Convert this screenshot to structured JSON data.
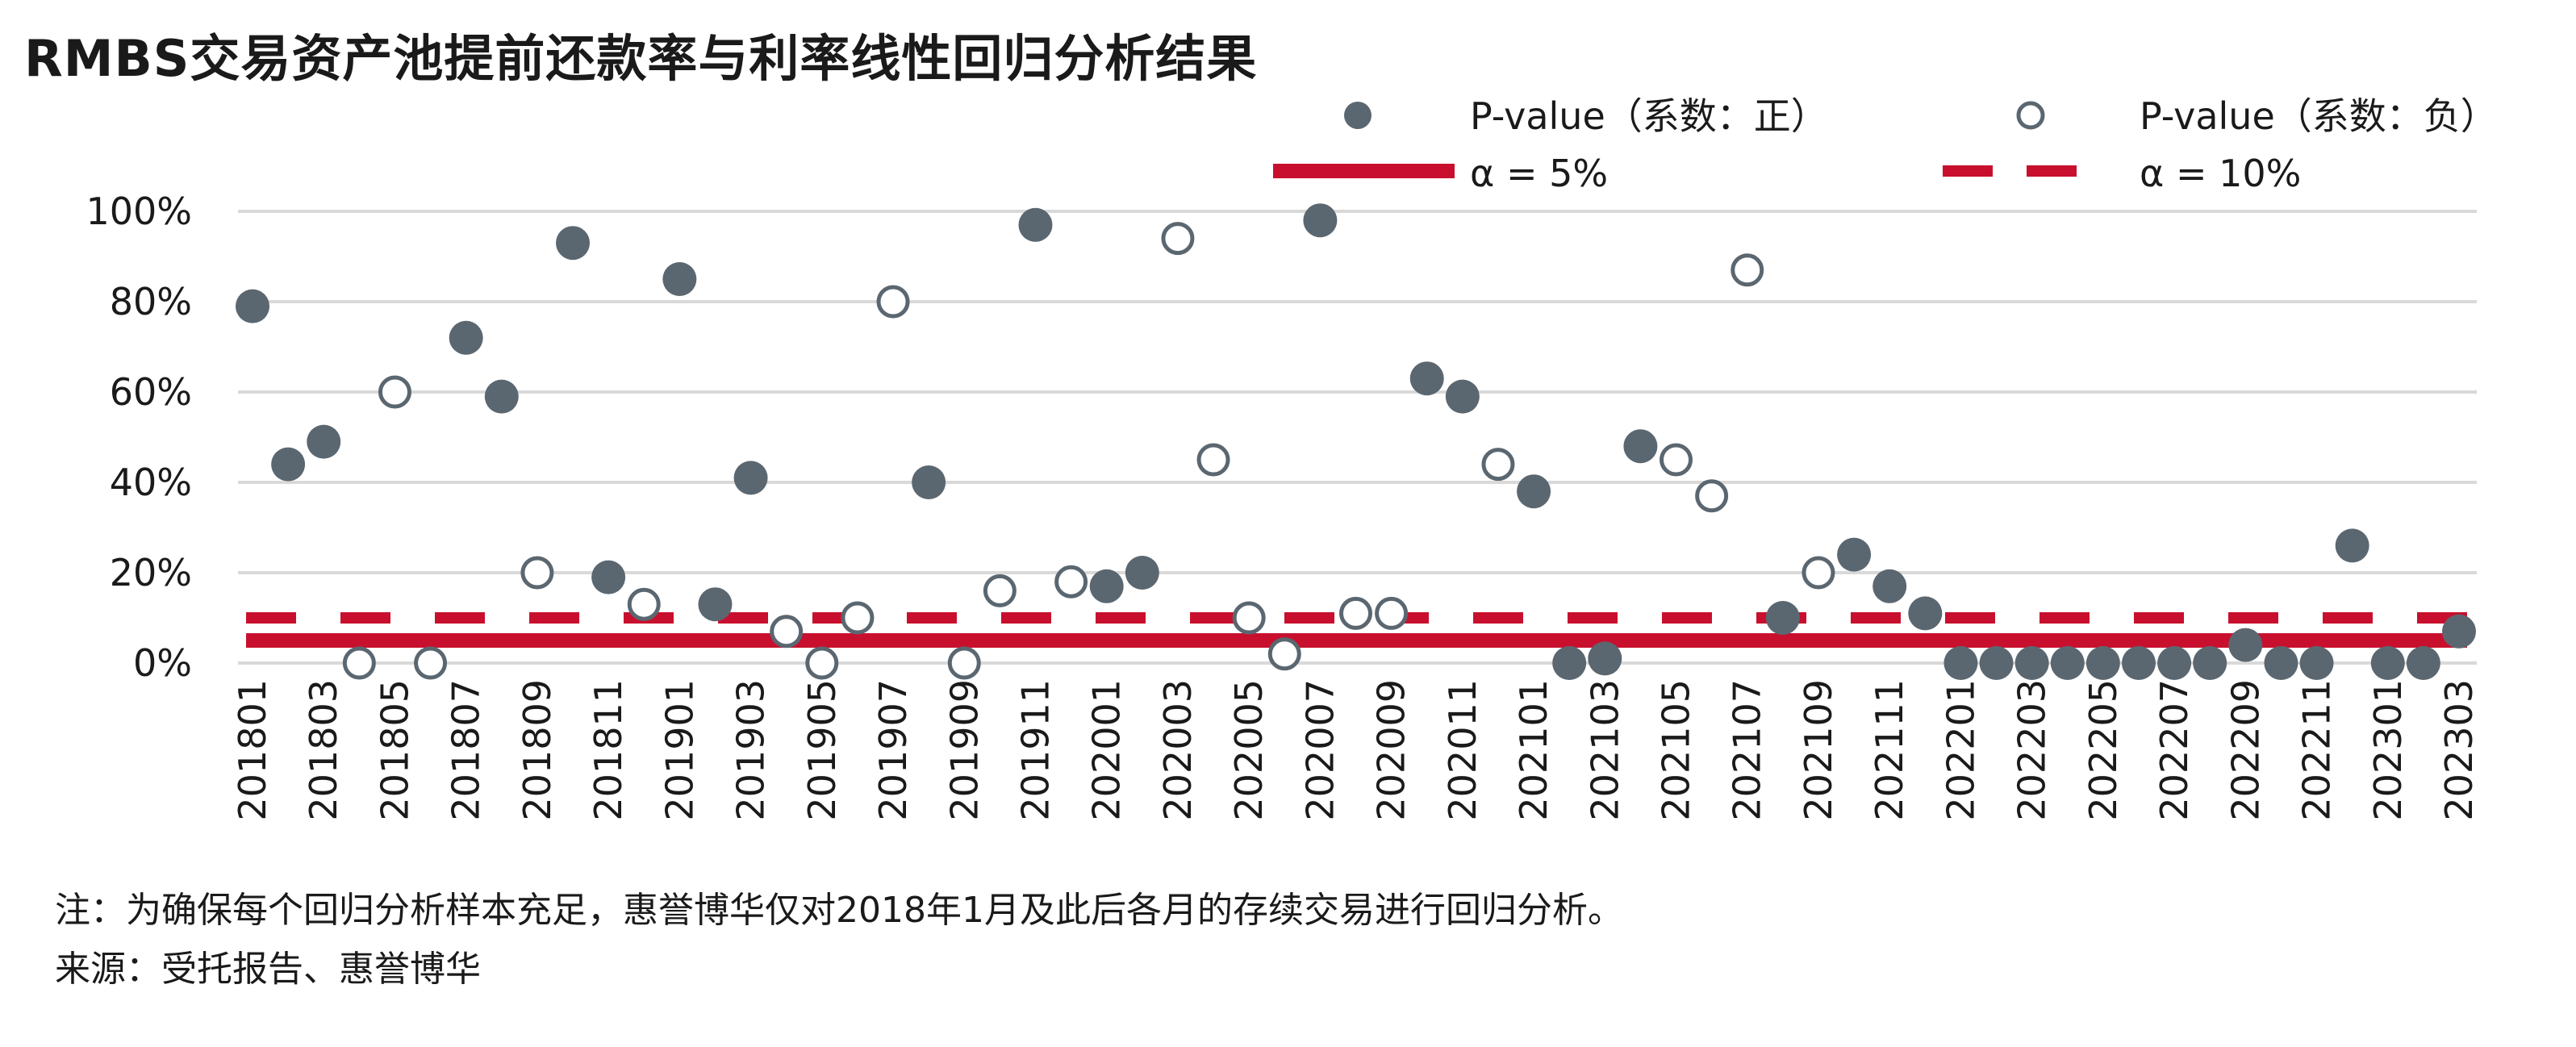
{
  "title": "RMBS交易资产池提前还款率与利率线性回归分析结果",
  "legend": {
    "positive": "P-value（系数：正）",
    "negative": "P-value（系数：负）",
    "alpha5": "α = 5%",
    "alpha10": "α = 10%"
  },
  "notes": {
    "note1": "注：为确保每个回归分析样本充足，惠誉博华仅对2018年1月及此后各月的存续交易进行回归分析。",
    "note2": "来源：受托报告、惠誉博华"
  },
  "colors": {
    "positive": "#5b6770",
    "negative": "#5b6770",
    "alpha": "#c8102e",
    "grid": "#d9d9d9"
  },
  "chart_data": {
    "type": "scatter",
    "title": "RMBS交易资产池提前还款率与利率线性回归分析结果",
    "x": [
      "201801",
      "201802",
      "201803",
      "201804",
      "201805",
      "201806",
      "201807",
      "201808",
      "201809",
      "201810",
      "201811",
      "201812",
      "201901",
      "201902",
      "201903",
      "201904",
      "201905",
      "201906",
      "201907",
      "201908",
      "201909",
      "201910",
      "201911",
      "201912",
      "202001",
      "202002",
      "202003",
      "202004",
      "202005",
      "202006",
      "202007",
      "202008",
      "202009",
      "202010",
      "202011",
      "202012",
      "202101",
      "202102",
      "202103",
      "202104",
      "202105",
      "202106",
      "202107",
      "202108",
      "202109",
      "202110",
      "202111",
      "202112",
      "202201",
      "202202",
      "202203",
      "202204",
      "202205",
      "202206",
      "202207",
      "202208",
      "202209",
      "202210",
      "202211",
      "202212",
      "202301",
      "202302",
      "202303"
    ],
    "x_tick_labels": [
      "201801",
      "201803",
      "201805",
      "201807",
      "201809",
      "201811",
      "201901",
      "201903",
      "201905",
      "201907",
      "201909",
      "201911",
      "202001",
      "202003",
      "202005",
      "202007",
      "202009",
      "202011",
      "202101",
      "202103",
      "202105",
      "202107",
      "202109",
      "202111",
      "202201",
      "202203",
      "202205",
      "202207",
      "202209",
      "202211",
      "202301",
      "202303"
    ],
    "y_ticks": [
      "0%",
      "20%",
      "40%",
      "60%",
      "80%",
      "100%"
    ],
    "ylim": [
      0,
      100
    ],
    "grid": true,
    "legend_position": "top-right",
    "series": [
      {
        "name": "P-value（系数：正）",
        "marker": "filled",
        "values": [
          79,
          44,
          49,
          null,
          null,
          null,
          72,
          59,
          null,
          93,
          19,
          null,
          85,
          13,
          41,
          null,
          null,
          null,
          null,
          40,
          null,
          null,
          97,
          null,
          17,
          20,
          null,
          null,
          null,
          null,
          98,
          null,
          null,
          63,
          59,
          null,
          38,
          0,
          1,
          48,
          null,
          null,
          null,
          10,
          null,
          24,
          17,
          11,
          0,
          0,
          0,
          0,
          0,
          0,
          0,
          0,
          4,
          0,
          0,
          26,
          0,
          0,
          7
        ]
      },
      {
        "name": "P-value（系数：负）",
        "marker": "hollow",
        "values": [
          null,
          null,
          null,
          0,
          60,
          0,
          null,
          null,
          20,
          null,
          null,
          13,
          null,
          null,
          null,
          7,
          0,
          10,
          80,
          null,
          0,
          16,
          null,
          18,
          null,
          null,
          94,
          45,
          10,
          2,
          null,
          11,
          11,
          null,
          null,
          44,
          null,
          null,
          null,
          null,
          45,
          37,
          87,
          null,
          20,
          null,
          null,
          null,
          null,
          null,
          null,
          null,
          null,
          null,
          null,
          null,
          null,
          null,
          null,
          null,
          null,
          null,
          null
        ]
      }
    ],
    "reference_lines": [
      {
        "name": "α = 5%",
        "value": 5,
        "style": "solid"
      },
      {
        "name": "α = 10%",
        "value": 10,
        "style": "dashed"
      }
    ]
  }
}
